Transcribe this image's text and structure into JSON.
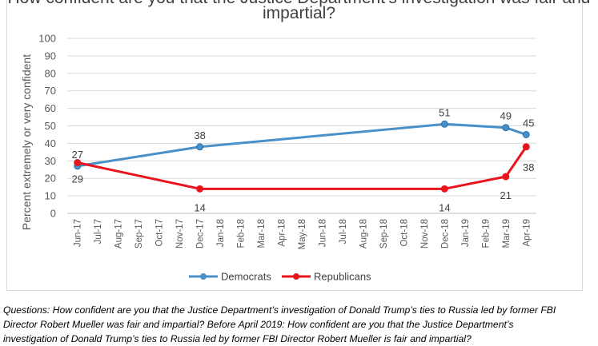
{
  "chart_data": {
    "type": "line",
    "title_line1": "How confident are you that the Justice Department’s investigation was fair and",
    "title_line2": "impartial?",
    "ylabel": "Percent extremely or very confident",
    "ylim": [
      0,
      100
    ],
    "yticks": [
      0,
      10,
      20,
      30,
      40,
      50,
      60,
      70,
      80,
      90,
      100
    ],
    "categories": [
      "Jun-17",
      "Jul-17",
      "Aug-17",
      "Sep-17",
      "Oct-17",
      "Nov-17",
      "Dec-17",
      "Jan-18",
      "Feb-18",
      "Mar-18",
      "Apr-18",
      "May-18",
      "Jun-18",
      "Jul-18",
      "Aug-18",
      "Sep-18",
      "Oct-18",
      "Nov-18",
      "Dec-18",
      "Jan-19",
      "Feb-19",
      "Mar-19",
      "Apr-19"
    ],
    "series": [
      {
        "name": "Democrats",
        "color": "#4a90c8",
        "points": [
          {
            "x": "Jun-17",
            "y": 27,
            "label": "27"
          },
          {
            "x": "Dec-17",
            "y": 38,
            "label": "38"
          },
          {
            "x": "Dec-18",
            "y": 51,
            "label": "51"
          },
          {
            "x": "Mar-19",
            "y": 49,
            "label": "49"
          },
          {
            "x": "Apr-19",
            "y": 45,
            "label": "45"
          }
        ]
      },
      {
        "name": "Republicans",
        "color": "#e8141e",
        "points": [
          {
            "x": "Jun-17",
            "y": 29,
            "label": "29"
          },
          {
            "x": "Dec-17",
            "y": 14,
            "label": "14"
          },
          {
            "x": "Dec-18",
            "y": 14,
            "label": "14"
          },
          {
            "x": "Mar-19",
            "y": 21,
            "label": "21"
          },
          {
            "x": "Apr-19",
            "y": 38,
            "label": "38"
          }
        ]
      }
    ],
    "legend_position": "bottom",
    "grid": true
  },
  "caption": {
    "line1": "Questions: How confident are you that the Justice Department’s investigation of Donald Trump’s ties to Russia led by former FBI",
    "line2": "Director Robert Mueller was fair and impartial? Before April 2019: How confident are you that the Justice Department’s",
    "line3": "investigation of Donald Trump’s ties to Russia led by former FBI Director Robert Mueller is fair and impartial?"
  }
}
